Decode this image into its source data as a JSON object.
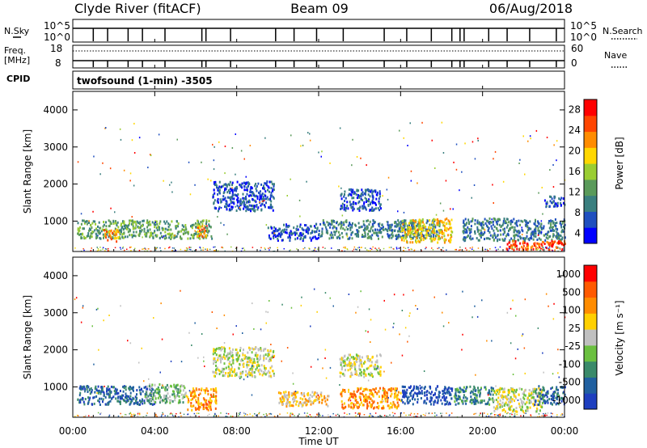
{
  "header": {
    "station": "Clyde River (fitACF)",
    "beam": "Beam 09",
    "date": "06/Aug/2018"
  },
  "summary_panels": {
    "nsky_label": "N.Sky",
    "nsky_ticks": [
      "10^5",
      "10^0"
    ],
    "nsearch_label": "N.Search",
    "nsearch_ticks": [
      "10^5",
      "10^0"
    ],
    "freq_label": "Freq.",
    "freq_unit": "[MHz]",
    "freq_ticks": [
      "18",
      "8"
    ],
    "nave_label": "Nave",
    "nave_ticks": [
      "60",
      "0"
    ],
    "cpid_label": "CPID",
    "cpid_value": "twofsound (1-min) -3505"
  },
  "colors": {
    "power_scale": [
      "#0000ff",
      "#1f4fbf",
      "#3a7f7f",
      "#5a9a5a",
      "#9acd32",
      "#ffd700",
      "#ff8c00",
      "#ff4500",
      "#ff0000"
    ],
    "velocity_scale": [
      "#1e3fbf",
      "#2060a0",
      "#3a8a6a",
      "#6bc040",
      "#c0c0c0",
      "#ffd000",
      "#ff8c00",
      "#ff5a00",
      "#ff0000"
    ]
  },
  "chart_data": [
    {
      "type": "heatmap",
      "name": "power",
      "ylabel": "Slant Range [km]",
      "ylim": [
        180,
        4500
      ],
      "yticks": [
        "4000",
        "3000",
        "2000",
        "1000"
      ],
      "xlim": [
        0,
        24
      ],
      "colorbar_label": "Power [dB]",
      "colorbar_ticks": [
        "28",
        "24",
        "20",
        "16",
        "12",
        "8",
        "4"
      ],
      "regions": [
        {
          "x0": 0.2,
          "x1": 6.8,
          "y0": 550,
          "y1": 1050,
          "c": 3
        },
        {
          "x0": 1.5,
          "x1": 2.2,
          "y0": 450,
          "y1": 800,
          "c": 6
        },
        {
          "x0": 6.0,
          "x1": 6.5,
          "y0": 600,
          "y1": 900,
          "c": 6
        },
        {
          "x0": 6.8,
          "x1": 9.8,
          "y0": 1300,
          "y1": 2100,
          "c": 1
        },
        {
          "x0": 9.5,
          "x1": 12.0,
          "y0": 500,
          "y1": 950,
          "c": 1
        },
        {
          "x0": 13.0,
          "x1": 15.0,
          "y0": 1300,
          "y1": 1900,
          "c": 1
        },
        {
          "x0": 12.0,
          "x1": 18.0,
          "y0": 550,
          "y1": 1050,
          "c": 2
        },
        {
          "x0": 16.0,
          "x1": 18.5,
          "y0": 450,
          "y1": 1100,
          "c": 5
        },
        {
          "x0": 19.0,
          "x1": 24.0,
          "y0": 500,
          "y1": 1100,
          "c": 2
        },
        {
          "x0": 21.0,
          "x1": 24.0,
          "y0": 250,
          "y1": 500,
          "c": 7
        },
        {
          "x0": 23.0,
          "x1": 24.0,
          "y0": 1400,
          "y1": 1700,
          "c": 1
        }
      ]
    },
    {
      "type": "heatmap",
      "name": "velocity",
      "ylabel": "Slant Range [km]",
      "ylim": [
        180,
        4500
      ],
      "yticks": [
        "4000",
        "3000",
        "2000",
        "1000"
      ],
      "xlim": [
        0,
        24
      ],
      "xticks": [
        "00:00",
        "04:00",
        "08:00",
        "12:00",
        "16:00",
        "20:00",
        "00:00"
      ],
      "xlabel": "Time UT",
      "colorbar_label": "Velocity [m s⁻¹]",
      "colorbar_ticks": [
        "1000",
        "500",
        "100",
        "25",
        "-25",
        "-100",
        "-500",
        "-1000"
      ],
      "regions": [
        {
          "x0": 0.2,
          "x1": 4.0,
          "y0": 550,
          "y1": 1050,
          "c": 1
        },
        {
          "x0": 3.5,
          "x1": 5.5,
          "y0": 600,
          "y1": 1100,
          "c": 3
        },
        {
          "x0": 5.5,
          "x1": 7.0,
          "y0": 400,
          "y1": 1000,
          "c": 6
        },
        {
          "x0": 6.8,
          "x1": 9.8,
          "y0": 1300,
          "y1": 2100,
          "c": 4
        },
        {
          "x0": 10.0,
          "x1": 12.5,
          "y0": 500,
          "y1": 900,
          "c": 5
        },
        {
          "x0": 13.0,
          "x1": 15.0,
          "y0": 1300,
          "y1": 1900,
          "c": 4
        },
        {
          "x0": 13.0,
          "x1": 16.0,
          "y0": 450,
          "y1": 1000,
          "c": 6
        },
        {
          "x0": 16.0,
          "x1": 18.5,
          "y0": 550,
          "y1": 1050,
          "c": 0
        },
        {
          "x0": 18.5,
          "x1": 20.5,
          "y0": 550,
          "y1": 1050,
          "c": 2
        },
        {
          "x0": 20.5,
          "x1": 23.0,
          "y0": 350,
          "y1": 1000,
          "c": 4
        },
        {
          "x0": 22.5,
          "x1": 24.0,
          "y0": 550,
          "y1": 1050,
          "c": 1
        }
      ]
    }
  ]
}
